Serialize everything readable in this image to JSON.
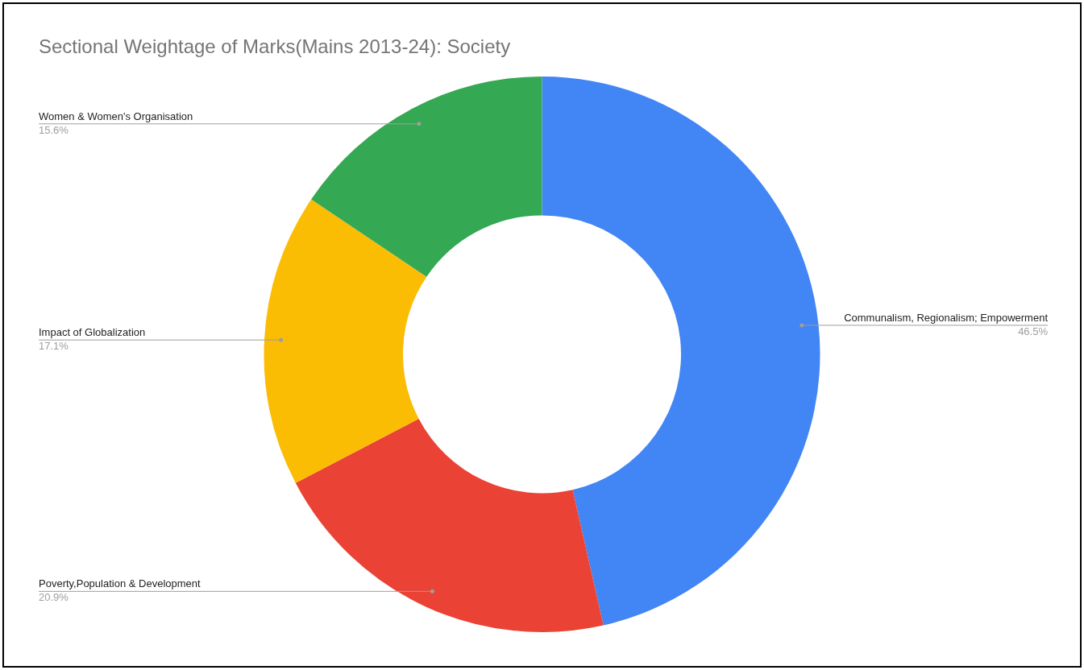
{
  "chart_data": {
    "type": "donut",
    "title": "Sectional Weightage of Marks(Mains 2013-24): Society",
    "categories": [
      "Communalism, Regionalism; Empowerment",
      "Poverty,Population & Development",
      "Impact of Globalization",
      "Women & Women's Organisation"
    ],
    "values": [
      46.5,
      20.9,
      17.1,
      15.6
    ],
    "colors": [
      "#4285f4",
      "#ea4335",
      "#fbbc04",
      "#34a853"
    ],
    "value_labels": [
      "46.5%",
      "20.9%",
      "17.1%",
      "15.6%"
    ],
    "legend": false
  }
}
